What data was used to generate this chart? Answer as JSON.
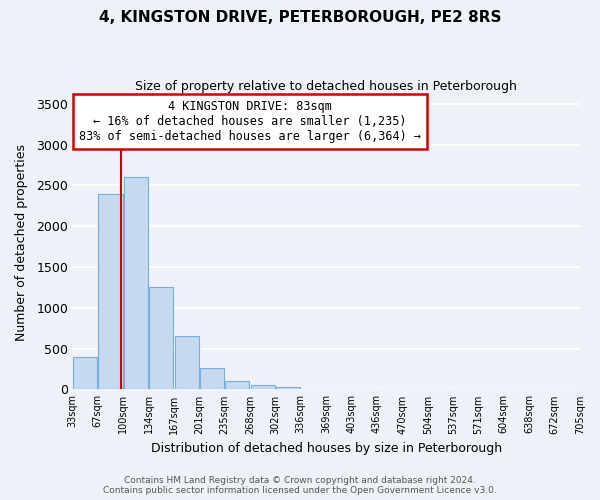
{
  "title": "4, KINGSTON DRIVE, PETERBOROUGH, PE2 8RS",
  "subtitle": "Size of property relative to detached houses in Peterborough",
  "xlabel": "Distribution of detached houses by size in Peterborough",
  "ylabel": "Number of detached properties",
  "bar_values": [
    400,
    2400,
    2600,
    1250,
    650,
    260,
    100,
    55,
    30,
    5,
    0,
    0,
    0,
    0,
    0,
    0,
    0,
    0,
    0,
    0
  ],
  "bar_labels": [
    "33sqm",
    "67sqm",
    "100sqm",
    "134sqm",
    "167sqm",
    "201sqm",
    "235sqm",
    "268sqm",
    "302sqm",
    "336sqm",
    "369sqm",
    "403sqm",
    "436sqm",
    "470sqm",
    "504sqm",
    "537sqm",
    "571sqm",
    "604sqm",
    "638sqm",
    "672sqm",
    "705sqm"
  ],
  "bar_color": "#c5d9f0",
  "bar_edge_color": "#7aaed4",
  "marker_line_color": "#cc0000",
  "annotation_box_color": "#ffffff",
  "annotation_box_edge_color": "#cc0000",
  "annotation_title": "4 KINGSTON DRIVE: 83sqm",
  "annotation_line1": "← 16% of detached houses are smaller (1,235)",
  "annotation_line2": "83% of semi-detached houses are larger (6,364) →",
  "ylim": [
    0,
    3600
  ],
  "yticks": [
    0,
    500,
    1000,
    1500,
    2000,
    2500,
    3000,
    3500
  ],
  "footer_line1": "Contains HM Land Registry data © Crown copyright and database right 2024.",
  "footer_line2": "Contains public sector information licensed under the Open Government Licence v3.0.",
  "bg_color": "#eef2f8"
}
